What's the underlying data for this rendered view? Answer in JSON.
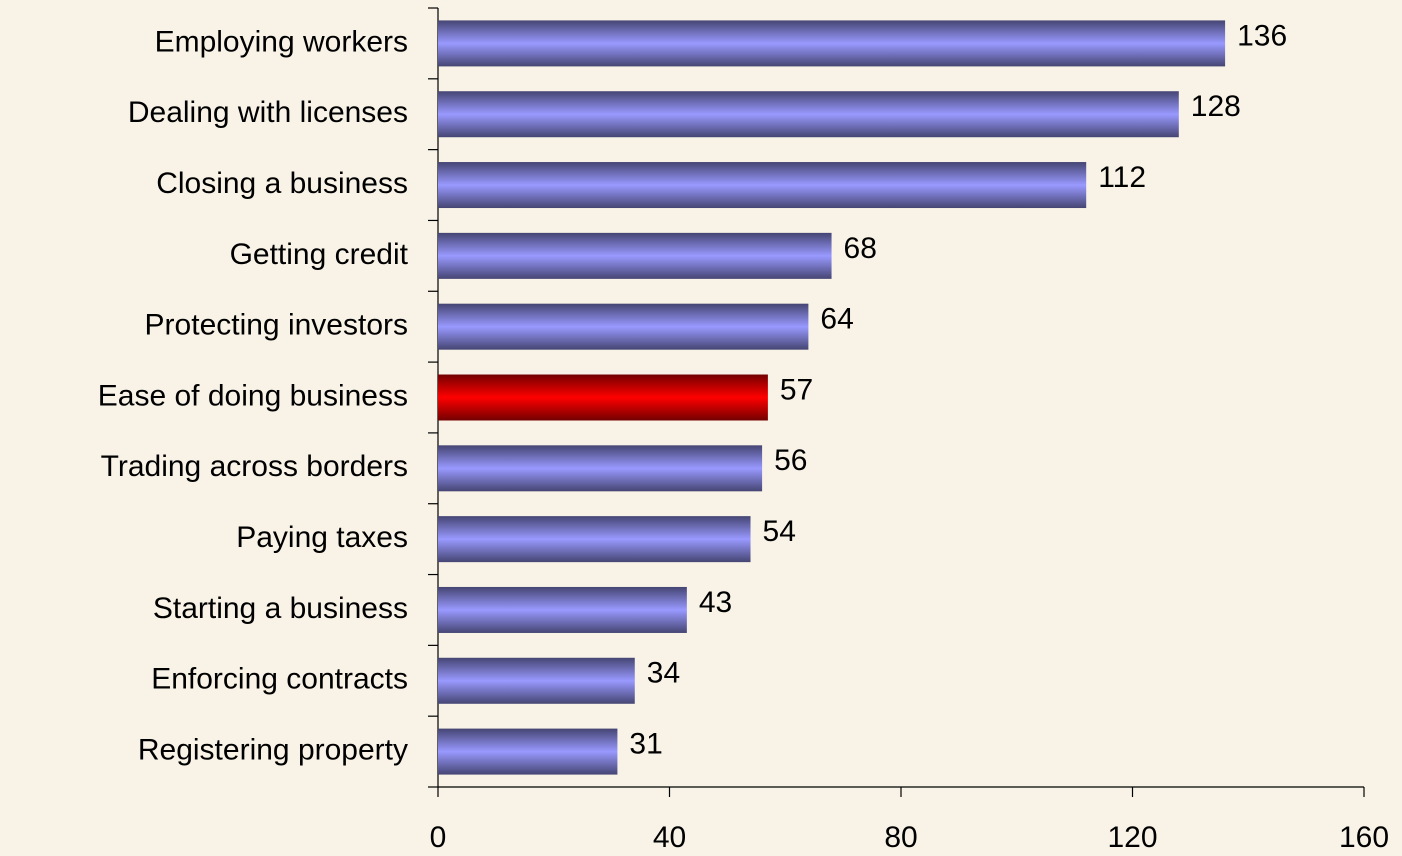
{
  "chart_data": {
    "type": "bar",
    "orientation": "horizontal",
    "categories": [
      "Employing workers",
      "Dealing with licenses",
      "Closing a business",
      "Getting credit",
      "Protecting investors",
      "Ease of doing business",
      "Trading across borders",
      "Paying taxes",
      "Starting a business",
      "Enforcing contracts",
      "Registering property"
    ],
    "values": [
      136,
      128,
      112,
      68,
      64,
      57,
      56,
      54,
      43,
      34,
      31
    ],
    "colors": [
      "#9999ff",
      "#9999ff",
      "#9999ff",
      "#9999ff",
      "#9999ff",
      "#ff0000",
      "#9999ff",
      "#9999ff",
      "#9999ff",
      "#9999ff",
      "#9999ff"
    ],
    "xlim": [
      0,
      160
    ],
    "xticks": [
      0,
      40,
      80,
      120,
      160
    ],
    "grid": false
  }
}
